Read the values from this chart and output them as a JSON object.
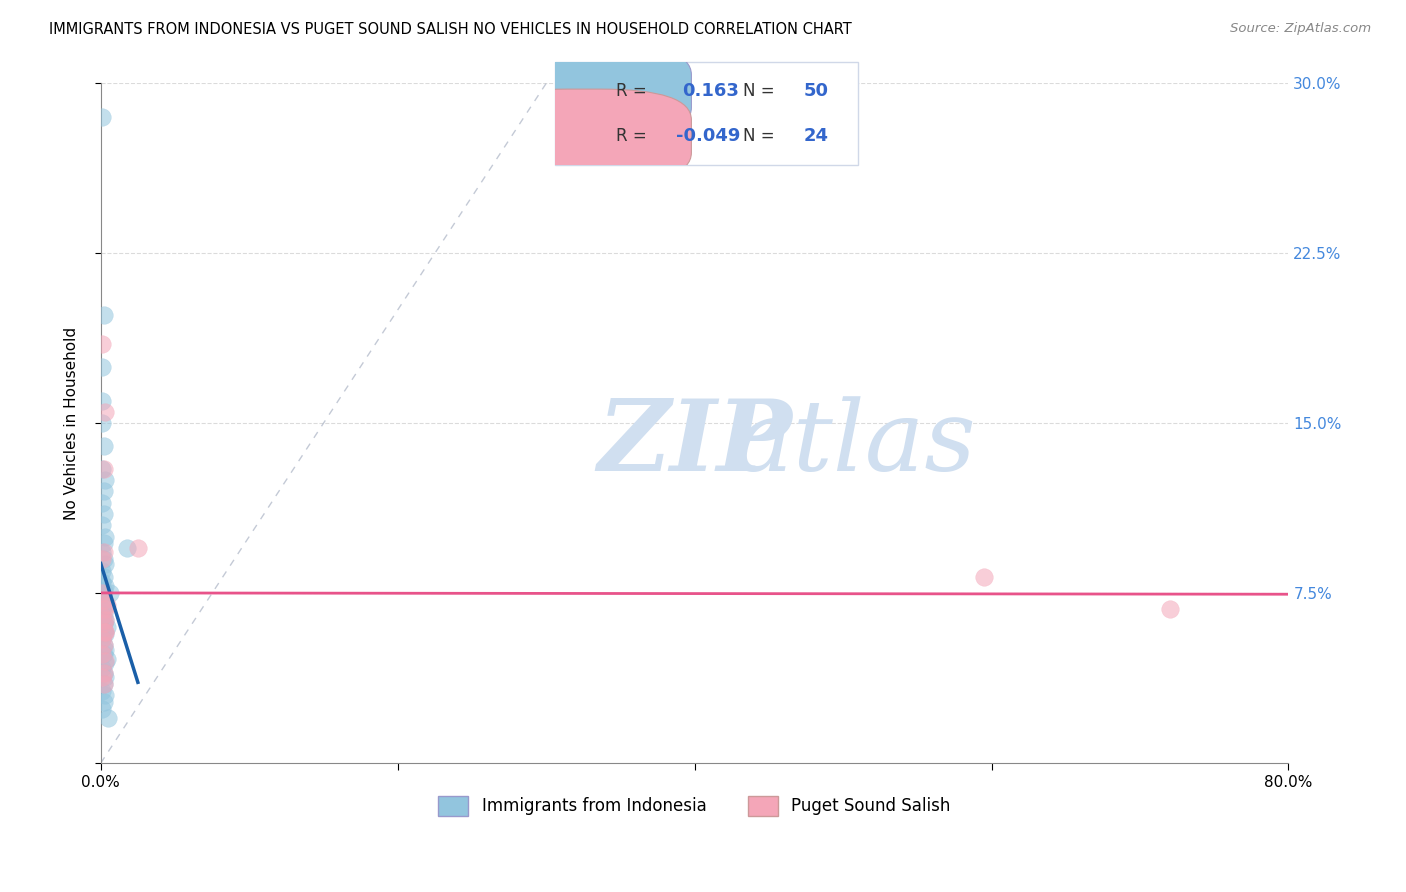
{
  "title": "IMMIGRANTS FROM INDONESIA VS PUGET SOUND SALISH NO VEHICLES IN HOUSEHOLD CORRELATION CHART",
  "source": "Source: ZipAtlas.com",
  "ylabel": "No Vehicles in Household",
  "legend_bottom": [
    "Immigrants from Indonesia",
    "Puget Sound Salish"
  ],
  "r_indonesia": 0.163,
  "n_indonesia": 50,
  "r_salish": -0.049,
  "n_salish": 24,
  "xlim": [
    0.0,
    0.8
  ],
  "ylim": [
    0.0,
    0.3
  ],
  "xtick_positions": [
    0.0,
    0.2,
    0.4,
    0.6,
    0.8
  ],
  "xtick_labels": [
    "0.0%",
    "",
    "",
    "",
    "80.0%"
  ],
  "ytick_positions": [
    0.0,
    0.075,
    0.15,
    0.225,
    0.3
  ],
  "ytick_labels_right": [
    "",
    "7.5%",
    "15.0%",
    "22.5%",
    "30.0%"
  ],
  "color_blue": "#92c5de",
  "color_pink": "#f4a6b8",
  "trend_blue": "#1a5fa8",
  "trend_pink": "#e8538a",
  "tick_color_right": "#4488dd",
  "background": "#ffffff",
  "grid_color": "#cccccc",
  "scatter_alpha": 0.55,
  "scatter_size": 160,
  "legend_text_color": "#3366cc",
  "watermark_color": "#d0dff0",
  "watermark_text": "ZIPatlas"
}
